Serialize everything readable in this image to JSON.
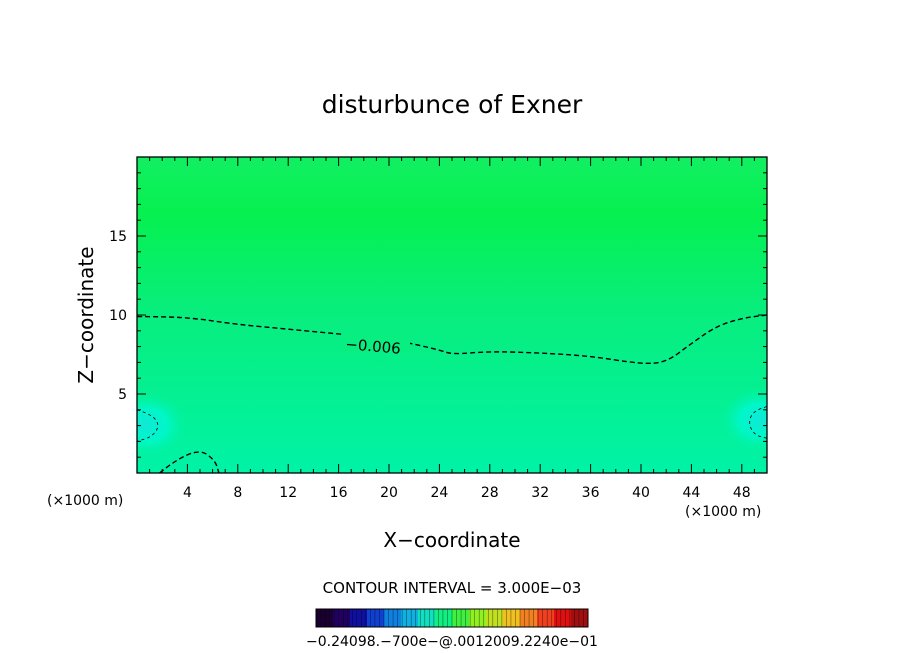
{
  "chart_data": {
    "type": "contour",
    "title": "disturbunce of Exner",
    "xlabel": "X−coordinate",
    "ylabel": "Z−coordinate",
    "x_unit_label": "(×1000 m)",
    "y_unit_label": "(×1000 m)",
    "xlim": [
      0,
      50
    ],
    "ylim": [
      0,
      20
    ],
    "x_ticks": [
      4,
      8,
      12,
      16,
      20,
      24,
      28,
      32,
      36,
      40,
      44,
      48
    ],
    "x_tick_labels": [
      "4",
      "8",
      "12",
      "16",
      "20",
      "24",
      "28",
      "32",
      "36",
      "40",
      "44",
      "48"
    ],
    "y_ticks": [
      5,
      10,
      15
    ],
    "y_tick_labels": [
      "5",
      "10",
      "15"
    ],
    "contour_interval_text": "CONTOUR INTERVAL = 3.000E−03",
    "contour_label": "−0.006",
    "contour_lines": [
      {
        "level": -0.006,
        "style": "dashed",
        "points": [
          [
            0,
            9.9
          ],
          [
            2,
            9.9
          ],
          [
            4.5,
            9.8
          ],
          [
            8,
            9.4
          ],
          [
            12,
            9.1
          ],
          [
            16,
            8.8
          ],
          [
            20,
            8.5
          ],
          [
            24,
            7.8
          ],
          [
            25,
            7.5
          ],
          [
            28,
            7.7
          ],
          [
            32,
            7.6
          ],
          [
            36,
            7.4
          ],
          [
            40,
            6.9
          ],
          [
            42,
            7.0
          ],
          [
            44,
            8.2
          ],
          [
            46,
            9.3
          ],
          [
            48,
            9.8
          ],
          [
            50,
            10.0
          ]
        ]
      },
      {
        "level": -0.006,
        "style": "dashed",
        "points": [
          [
            1.8,
            0
          ],
          [
            3,
            0.8
          ],
          [
            5,
            1.5
          ],
          [
            6.2,
            0.8
          ],
          [
            6.5,
            0
          ]
        ]
      },
      {
        "level": -0.009,
        "style": "dashed-thin",
        "points": [
          [
            0,
            4.0
          ],
          [
            1.2,
            3.7
          ],
          [
            1.8,
            3.0
          ],
          [
            1.2,
            2.3
          ],
          [
            0,
            2.0
          ]
        ]
      },
      {
        "level": -0.009,
        "style": "dashed-thin",
        "points": [
          [
            50,
            4.2
          ],
          [
            49,
            4.0
          ],
          [
            48.5,
            3.2
          ],
          [
            49,
            2.4
          ],
          [
            50,
            2.2
          ]
        ]
      }
    ],
    "field_colors": {
      "top": "#12ef62",
      "mid": "#08ee7e",
      "bottom": "#00f3a6",
      "spot": "#00f7c8",
      "core": "#10e8d8"
    },
    "colorbar": {
      "tick_text": "−0.24098.−700e−@.0012009.2240e−01",
      "colors": [
        "#1a0030",
        "#200060",
        "#1010a0",
        "#1040d0",
        "#1080e0",
        "#10b0e0",
        "#10e0c0",
        "#10f080",
        "#40f040",
        "#90f020",
        "#c0e020",
        "#f0c020",
        "#f08020",
        "#f04020",
        "#e01010",
        "#a01010"
      ]
    }
  }
}
